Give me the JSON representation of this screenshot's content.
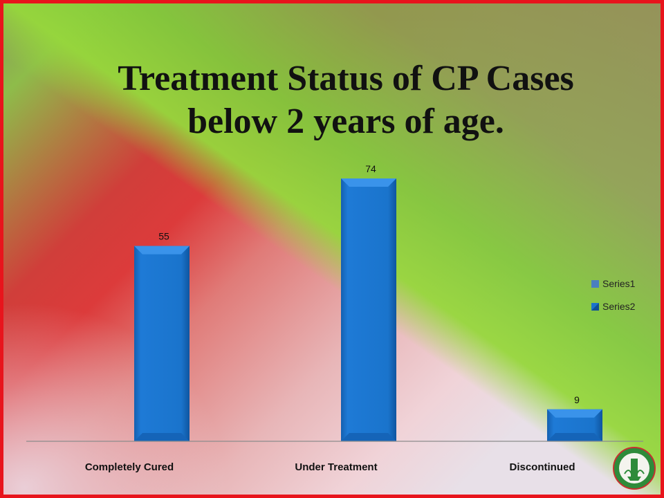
{
  "title_line1": "Treatment Status of CP Cases",
  "title_line2": "below 2 years of age.",
  "chart_data": {
    "type": "bar",
    "title": "Treatment Status of CP Cases below 2 years of age.",
    "categories": [
      "Completely Cured",
      "Under Treatment",
      "Discontinued"
    ],
    "series": [
      {
        "name": "Series1",
        "values": [
          null,
          null,
          null
        ]
      },
      {
        "name": "Series2",
        "values": [
          55,
          74,
          9
        ]
      }
    ],
    "data_labels": [
      "55",
      "74",
      "9"
    ],
    "xlabel": "",
    "ylabel": "",
    "ylim": [
      0,
      74
    ],
    "grid": false,
    "legend_position": "right",
    "bar_color": "#1a73c8"
  }
}
